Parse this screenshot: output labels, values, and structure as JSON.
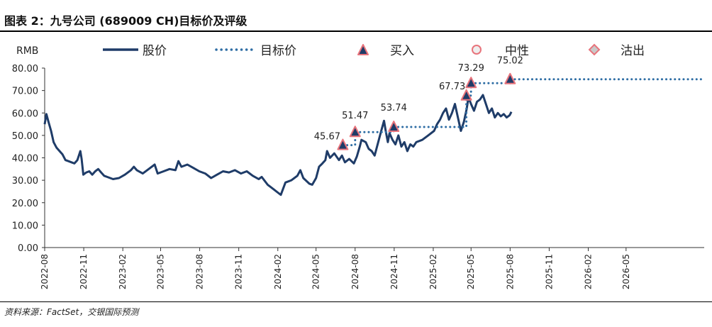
{
  "page": {
    "title": "图表 2：九号公司 (689009 CH)目标价及评级",
    "source": "资料来源：FactSet，交银国际预测"
  },
  "colors": {
    "price_line": "#1f3c68",
    "target_line": "#2e6da4",
    "buy_marker_fill": "#1f3c68",
    "buy_marker_stroke": "#e8747c",
    "neutral_marker_fill": "#eeeeee",
    "neutral_marker_stroke": "#e8747c",
    "sell_marker_fill": "#c9c9c9",
    "sell_marker_stroke": "#e8747c",
    "axis": "#333333",
    "text": "#222222"
  },
  "chart_data": {
    "type": "line",
    "yunit_label": "RMB",
    "ylim": [
      0,
      80
    ],
    "yticks": [
      "0.00",
      "10.00",
      "20.00",
      "30.00",
      "40.00",
      "50.00",
      "60.00",
      "70.00",
      "80.00"
    ],
    "xlim": [
      "2022-08-01",
      "2026-11-01"
    ],
    "xticks": [
      "2022-08",
      "2022-11",
      "2023-02",
      "2023-05",
      "2023-08",
      "2023-11",
      "2024-02",
      "2024-05",
      "2024-08",
      "2024-11",
      "2025-02",
      "2025-05",
      "2025-08",
      "2025-11",
      "2026-02",
      "2026-05"
    ],
    "grid": false,
    "legend_placement": "top",
    "legend": [
      {
        "key": "price",
        "label": "股价"
      },
      {
        "key": "target",
        "label": "目标价"
      },
      {
        "key": "buy",
        "label": "买入"
      },
      {
        "key": "neutral",
        "label": "中性"
      },
      {
        "key": "sell",
        "label": "沽出"
      }
    ],
    "series": [
      {
        "name": "股价",
        "style": "solid",
        "points": [
          [
            "2022-08-01",
            55.0
          ],
          [
            "2022-08-05",
            59.5
          ],
          [
            "2022-08-10",
            56.0
          ],
          [
            "2022-08-16",
            52.0
          ],
          [
            "2022-08-22",
            47.0
          ],
          [
            "2022-08-29",
            44.5
          ],
          [
            "2022-09-05",
            43.0
          ],
          [
            "2022-09-12",
            41.5
          ],
          [
            "2022-09-19",
            39.0
          ],
          [
            "2022-09-26",
            38.5
          ],
          [
            "2022-10-03",
            38.0
          ],
          [
            "2022-10-10",
            37.5
          ],
          [
            "2022-10-17",
            39.0
          ],
          [
            "2022-10-24",
            43.0
          ],
          [
            "2022-10-27",
            39.5
          ],
          [
            "2022-10-31",
            32.5
          ],
          [
            "2022-11-07",
            33.5
          ],
          [
            "2022-11-14",
            34.0
          ],
          [
            "2022-11-21",
            32.5
          ],
          [
            "2022-11-28",
            34.0
          ],
          [
            "2022-12-05",
            35.0
          ],
          [
            "2022-12-12",
            33.5
          ],
          [
            "2022-12-19",
            32.0
          ],
          [
            "2022-12-26",
            31.5
          ],
          [
            "2023-01-09",
            30.5
          ],
          [
            "2023-01-23",
            31.0
          ],
          [
            "2023-02-06",
            32.5
          ],
          [
            "2023-02-20",
            34.5
          ],
          [
            "2023-02-27",
            36.0
          ],
          [
            "2023-03-06",
            34.5
          ],
          [
            "2023-03-20",
            33.0
          ],
          [
            "2023-04-03",
            35.0
          ],
          [
            "2023-04-17",
            37.0
          ],
          [
            "2023-04-24",
            33.0
          ],
          [
            "2023-05-08",
            34.0
          ],
          [
            "2023-05-22",
            35.0
          ],
          [
            "2023-06-05",
            34.5
          ],
          [
            "2023-06-12",
            38.5
          ],
          [
            "2023-06-19",
            36.0
          ],
          [
            "2023-07-03",
            37.0
          ],
          [
            "2023-07-17",
            35.5
          ],
          [
            "2023-07-31",
            34.0
          ],
          [
            "2023-08-14",
            33.0
          ],
          [
            "2023-08-28",
            31.0
          ],
          [
            "2023-09-11",
            32.5
          ],
          [
            "2023-09-25",
            34.0
          ],
          [
            "2023-10-09",
            33.5
          ],
          [
            "2023-10-23",
            34.5
          ],
          [
            "2023-11-06",
            33.0
          ],
          [
            "2023-11-20",
            34.0
          ],
          [
            "2023-12-04",
            32.0
          ],
          [
            "2023-12-18",
            30.5
          ],
          [
            "2023-12-25",
            31.5
          ],
          [
            "2024-01-08",
            28.0
          ],
          [
            "2024-01-22",
            26.0
          ],
          [
            "2024-02-01",
            24.5
          ],
          [
            "2024-02-08",
            23.5
          ],
          [
            "2024-02-19",
            29.0
          ],
          [
            "2024-03-04",
            30.0
          ],
          [
            "2024-03-18",
            32.0
          ],
          [
            "2024-03-25",
            34.5
          ],
          [
            "2024-04-01",
            31.0
          ],
          [
            "2024-04-15",
            28.5
          ],
          [
            "2024-04-22",
            28.0
          ],
          [
            "2024-05-01",
            31.0
          ],
          [
            "2024-05-08",
            36.0
          ],
          [
            "2024-05-16",
            37.5
          ],
          [
            "2024-05-23",
            39.0
          ],
          [
            "2024-05-27",
            43.0
          ],
          [
            "2024-06-03",
            40.0
          ],
          [
            "2024-06-13",
            42.0
          ],
          [
            "2024-06-24",
            39.0
          ],
          [
            "2024-07-01",
            41.0
          ],
          [
            "2024-07-08",
            38.0
          ],
          [
            "2024-07-18",
            39.5
          ],
          [
            "2024-07-29",
            37.5
          ],
          [
            "2024-08-05",
            40.5
          ],
          [
            "2024-08-12",
            45.0
          ],
          [
            "2024-08-16",
            48.0
          ],
          [
            "2024-08-26",
            47.0
          ],
          [
            "2024-09-02",
            44.0
          ],
          [
            "2024-09-09",
            43.0
          ],
          [
            "2024-09-16",
            41.0
          ],
          [
            "2024-09-23",
            46.0
          ],
          [
            "2024-09-30",
            51.0
          ],
          [
            "2024-10-08",
            56.5
          ],
          [
            "2024-10-12",
            52.0
          ],
          [
            "2024-10-17",
            47.0
          ],
          [
            "2024-10-21",
            51.0
          ],
          [
            "2024-10-28",
            48.0
          ],
          [
            "2024-11-04",
            46.0
          ],
          [
            "2024-11-11",
            50.0
          ],
          [
            "2024-11-18",
            45.0
          ],
          [
            "2024-11-25",
            47.0
          ],
          [
            "2024-12-02",
            43.0
          ],
          [
            "2024-12-09",
            46.0
          ],
          [
            "2024-12-16",
            45.0
          ],
          [
            "2024-12-23",
            47.0
          ],
          [
            "2025-01-06",
            48.0
          ],
          [
            "2025-01-20",
            50.0
          ],
          [
            "2025-02-03",
            52.0
          ],
          [
            "2025-02-10",
            55.0
          ],
          [
            "2025-02-17",
            57.0
          ],
          [
            "2025-02-24",
            60.0
          ],
          [
            "2025-03-03",
            62.0
          ],
          [
            "2025-03-10",
            57.0
          ],
          [
            "2025-03-17",
            60.0
          ],
          [
            "2025-03-24",
            64.0
          ],
          [
            "2025-03-31",
            58.0
          ],
          [
            "2025-04-07",
            52.0
          ],
          [
            "2025-04-14",
            56.0
          ],
          [
            "2025-04-21",
            62.0
          ],
          [
            "2025-04-25",
            67.0
          ],
          [
            "2025-05-01",
            64.0
          ],
          [
            "2025-05-08",
            61.0
          ],
          [
            "2025-05-15",
            65.0
          ],
          [
            "2025-05-22",
            66.0
          ],
          [
            "2025-05-29",
            68.0
          ],
          [
            "2025-06-05",
            64.0
          ],
          [
            "2025-06-12",
            60.0
          ],
          [
            "2025-06-19",
            62.0
          ],
          [
            "2025-06-26",
            58.0
          ],
          [
            "2025-07-03",
            60.0
          ],
          [
            "2025-07-10",
            58.5
          ],
          [
            "2025-07-17",
            59.5
          ],
          [
            "2025-07-24",
            58.0
          ],
          [
            "2025-07-31",
            59.0
          ],
          [
            "2025-08-04",
            60.5
          ]
        ]
      },
      {
        "name": "目标价",
        "style": "dotted",
        "points": [
          [
            "2024-07-03",
            45.67
          ],
          [
            "2024-08-01",
            45.67
          ],
          [
            "2024-08-01",
            51.47
          ],
          [
            "2024-10-31",
            51.47
          ],
          [
            "2024-10-31",
            53.74
          ],
          [
            "2025-04-20",
            53.74
          ],
          [
            "2025-04-20",
            67.73
          ],
          [
            "2025-05-01",
            67.73
          ],
          [
            "2025-05-01",
            73.29
          ],
          [
            "2025-08-01",
            73.29
          ],
          [
            "2025-08-01",
            75.02
          ],
          [
            "2026-11-01",
            75.02
          ]
        ]
      }
    ],
    "rating_markers": [
      {
        "date": "2024-07-03",
        "value": 45.67,
        "rating": "buy",
        "label": "45.67"
      },
      {
        "date": "2024-08-01",
        "value": 51.47,
        "rating": "buy",
        "label": "51.47"
      },
      {
        "date": "2024-10-31",
        "value": 53.74,
        "rating": "buy",
        "label": "53.74"
      },
      {
        "date": "2025-04-20",
        "value": 67.73,
        "rating": "buy",
        "label": "67.73"
      },
      {
        "date": "2025-05-01",
        "value": 73.29,
        "rating": "buy",
        "label": "73.29"
      },
      {
        "date": "2025-08-01",
        "value": 75.02,
        "rating": "buy",
        "label": "75.02"
      }
    ]
  }
}
